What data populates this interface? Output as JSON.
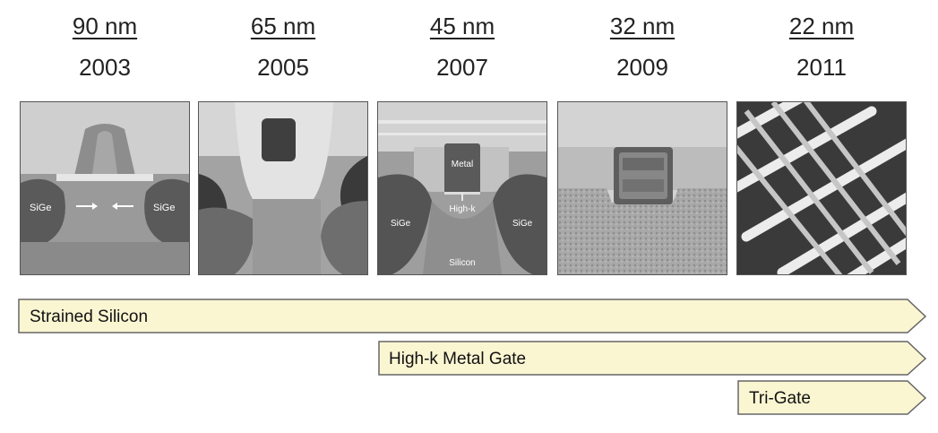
{
  "nodes": [
    {
      "node": "90 nm",
      "year": "2003"
    },
    {
      "node": "65 nm",
      "year": "2005"
    },
    {
      "node": "45 nm",
      "year": "2007"
    },
    {
      "node": "32 nm",
      "year": "2009"
    },
    {
      "node": "22 nm",
      "year": "2011"
    }
  ],
  "images": {
    "img0": {
      "left_label": "SiGe",
      "right_label": "SiGe"
    },
    "img2": {
      "gate_label": "Metal",
      "dielectric_label": "High-k",
      "left_label": "SiGe",
      "right_label": "SiGe",
      "bottom_label": "Silicon"
    }
  },
  "arrows": [
    {
      "label": "Strained Silicon"
    },
    {
      "label": "High-k Metal Gate"
    },
    {
      "label": "Tri-Gate"
    }
  ],
  "colors": {
    "arrow_fill": "#fbf6d2",
    "arrow_stroke": "#666666"
  }
}
